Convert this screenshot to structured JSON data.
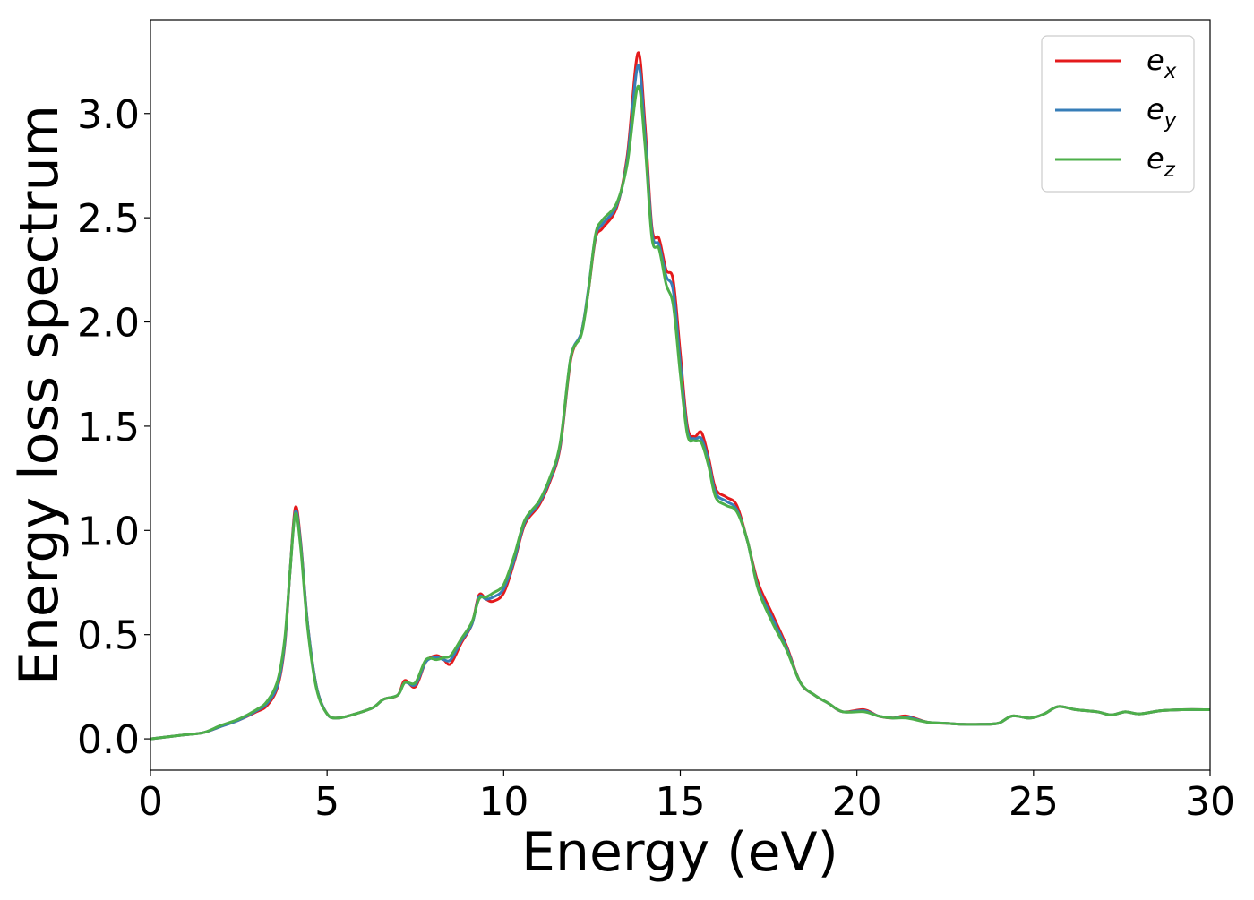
{
  "chart_data": {
    "type": "line",
    "title": "",
    "xlabel": "Energy (eV)",
    "ylabel": "Energy loss spectrum",
    "xlim": [
      0,
      30
    ],
    "ylim": [
      -0.15,
      3.45
    ],
    "xticks": [
      0,
      5,
      10,
      15,
      20,
      25,
      30
    ],
    "xtick_labels": [
      "0",
      "5",
      "10",
      "15",
      "20",
      "25",
      "30"
    ],
    "yticks": [
      0.0,
      0.5,
      1.0,
      1.5,
      2.0,
      2.5,
      3.0
    ],
    "ytick_labels": [
      "0.0",
      "0.5",
      "1.0",
      "1.5",
      "2.0",
      "2.5",
      "3.0"
    ],
    "grid": false,
    "legend_position": "top-right",
    "series": [
      {
        "name": "e_x",
        "label_main": "e",
        "label_sub": "x",
        "color": "#e41a1c",
        "points": [
          [
            0,
            0.0
          ],
          [
            0.5,
            0.01
          ],
          [
            1.0,
            0.02
          ],
          [
            1.5,
            0.03
          ],
          [
            2.0,
            0.06
          ],
          [
            2.5,
            0.09
          ],
          [
            3.0,
            0.13
          ],
          [
            3.3,
            0.16
          ],
          [
            3.6,
            0.25
          ],
          [
            3.8,
            0.45
          ],
          [
            3.95,
            0.8
          ],
          [
            4.1,
            1.11
          ],
          [
            4.25,
            0.95
          ],
          [
            4.45,
            0.55
          ],
          [
            4.7,
            0.25
          ],
          [
            5.0,
            0.12
          ],
          [
            5.3,
            0.1
          ],
          [
            5.8,
            0.12
          ],
          [
            6.3,
            0.15
          ],
          [
            6.6,
            0.19
          ],
          [
            7.0,
            0.21
          ],
          [
            7.2,
            0.28
          ],
          [
            7.5,
            0.25
          ],
          [
            7.8,
            0.37
          ],
          [
            8.1,
            0.4
          ],
          [
            8.3,
            0.38
          ],
          [
            8.5,
            0.36
          ],
          [
            8.8,
            0.46
          ],
          [
            9.1,
            0.55
          ],
          [
            9.3,
            0.69
          ],
          [
            9.5,
            0.67
          ],
          [
            9.7,
            0.66
          ],
          [
            10.0,
            0.7
          ],
          [
            10.3,
            0.85
          ],
          [
            10.6,
            1.03
          ],
          [
            11.0,
            1.12
          ],
          [
            11.3,
            1.23
          ],
          [
            11.6,
            1.4
          ],
          [
            11.9,
            1.82
          ],
          [
            12.2,
            1.95
          ],
          [
            12.4,
            2.15
          ],
          [
            12.6,
            2.4
          ],
          [
            12.8,
            2.45
          ],
          [
            13.2,
            2.55
          ],
          [
            13.5,
            2.8
          ],
          [
            13.8,
            3.29
          ],
          [
            14.0,
            2.95
          ],
          [
            14.2,
            2.45
          ],
          [
            14.4,
            2.4
          ],
          [
            14.6,
            2.25
          ],
          [
            14.8,
            2.2
          ],
          [
            15.0,
            1.85
          ],
          [
            15.2,
            1.5
          ],
          [
            15.4,
            1.45
          ],
          [
            15.6,
            1.47
          ],
          [
            15.8,
            1.35
          ],
          [
            16.0,
            1.2
          ],
          [
            16.3,
            1.16
          ],
          [
            16.6,
            1.12
          ],
          [
            16.9,
            0.95
          ],
          [
            17.2,
            0.75
          ],
          [
            17.6,
            0.6
          ],
          [
            18.0,
            0.45
          ],
          [
            18.4,
            0.27
          ],
          [
            18.8,
            0.21
          ],
          [
            19.2,
            0.17
          ],
          [
            19.6,
            0.13
          ],
          [
            20.2,
            0.14
          ],
          [
            20.6,
            0.11
          ],
          [
            21.0,
            0.1
          ],
          [
            21.4,
            0.11
          ],
          [
            22.0,
            0.08
          ],
          [
            22.5,
            0.075
          ],
          [
            23.0,
            0.07
          ],
          [
            23.5,
            0.07
          ],
          [
            24.0,
            0.075
          ],
          [
            24.4,
            0.11
          ],
          [
            24.9,
            0.1
          ],
          [
            25.3,
            0.12
          ],
          [
            25.7,
            0.155
          ],
          [
            26.2,
            0.14
          ],
          [
            26.8,
            0.13
          ],
          [
            27.2,
            0.115
          ],
          [
            27.6,
            0.13
          ],
          [
            28.0,
            0.12
          ],
          [
            28.6,
            0.135
          ],
          [
            29.2,
            0.14
          ],
          [
            30.0,
            0.14
          ]
        ]
      },
      {
        "name": "e_y",
        "label_main": "e",
        "label_sub": "y",
        "color": "#377eb8",
        "points": [
          [
            0,
            0.0
          ],
          [
            0.5,
            0.01
          ],
          [
            1.0,
            0.02
          ],
          [
            1.5,
            0.03
          ],
          [
            2.0,
            0.06
          ],
          [
            2.5,
            0.09
          ],
          [
            3.0,
            0.135
          ],
          [
            3.3,
            0.17
          ],
          [
            3.6,
            0.26
          ],
          [
            3.8,
            0.46
          ],
          [
            3.95,
            0.8
          ],
          [
            4.1,
            1.09
          ],
          [
            4.25,
            0.94
          ],
          [
            4.45,
            0.55
          ],
          [
            4.7,
            0.25
          ],
          [
            5.0,
            0.12
          ],
          [
            5.3,
            0.1
          ],
          [
            5.8,
            0.12
          ],
          [
            6.3,
            0.15
          ],
          [
            6.6,
            0.19
          ],
          [
            7.0,
            0.21
          ],
          [
            7.2,
            0.27
          ],
          [
            7.5,
            0.26
          ],
          [
            7.8,
            0.37
          ],
          [
            8.1,
            0.39
          ],
          [
            8.3,
            0.38
          ],
          [
            8.5,
            0.38
          ],
          [
            8.8,
            0.47
          ],
          [
            9.1,
            0.55
          ],
          [
            9.3,
            0.68
          ],
          [
            9.5,
            0.67
          ],
          [
            9.7,
            0.68
          ],
          [
            10.0,
            0.72
          ],
          [
            10.3,
            0.86
          ],
          [
            10.6,
            1.04
          ],
          [
            11.0,
            1.13
          ],
          [
            11.3,
            1.24
          ],
          [
            11.6,
            1.41
          ],
          [
            11.9,
            1.83
          ],
          [
            12.2,
            1.95
          ],
          [
            12.4,
            2.16
          ],
          [
            12.6,
            2.41
          ],
          [
            12.8,
            2.47
          ],
          [
            13.2,
            2.56
          ],
          [
            13.5,
            2.78
          ],
          [
            13.8,
            3.23
          ],
          [
            14.0,
            2.9
          ],
          [
            14.2,
            2.43
          ],
          [
            14.4,
            2.37
          ],
          [
            14.6,
            2.22
          ],
          [
            14.8,
            2.15
          ],
          [
            15.0,
            1.8
          ],
          [
            15.2,
            1.48
          ],
          [
            15.4,
            1.44
          ],
          [
            15.6,
            1.44
          ],
          [
            15.8,
            1.33
          ],
          [
            16.0,
            1.18
          ],
          [
            16.3,
            1.14
          ],
          [
            16.6,
            1.1
          ],
          [
            16.9,
            0.95
          ],
          [
            17.2,
            0.73
          ],
          [
            17.6,
            0.58
          ],
          [
            18.0,
            0.44
          ],
          [
            18.4,
            0.27
          ],
          [
            18.8,
            0.21
          ],
          [
            19.2,
            0.17
          ],
          [
            19.6,
            0.13
          ],
          [
            20.2,
            0.135
          ],
          [
            20.6,
            0.11
          ],
          [
            21.0,
            0.1
          ],
          [
            21.4,
            0.105
          ],
          [
            22.0,
            0.08
          ],
          [
            22.5,
            0.075
          ],
          [
            23.0,
            0.07
          ],
          [
            23.5,
            0.07
          ],
          [
            24.0,
            0.075
          ],
          [
            24.4,
            0.11
          ],
          [
            24.9,
            0.1
          ],
          [
            25.3,
            0.12
          ],
          [
            25.7,
            0.155
          ],
          [
            26.2,
            0.14
          ],
          [
            26.8,
            0.13
          ],
          [
            27.2,
            0.115
          ],
          [
            27.6,
            0.13
          ],
          [
            28.0,
            0.12
          ],
          [
            28.6,
            0.135
          ],
          [
            29.2,
            0.14
          ],
          [
            30.0,
            0.14
          ]
        ]
      },
      {
        "name": "e_z",
        "label_main": "e",
        "label_sub": "z",
        "color": "#4daf4a",
        "points": [
          [
            0,
            0.0
          ],
          [
            0.5,
            0.01
          ],
          [
            1.0,
            0.02
          ],
          [
            1.5,
            0.03
          ],
          [
            2.0,
            0.065
          ],
          [
            2.5,
            0.095
          ],
          [
            3.0,
            0.14
          ],
          [
            3.3,
            0.18
          ],
          [
            3.6,
            0.28
          ],
          [
            3.8,
            0.48
          ],
          [
            3.95,
            0.8
          ],
          [
            4.1,
            1.08
          ],
          [
            4.25,
            0.92
          ],
          [
            4.45,
            0.53
          ],
          [
            4.7,
            0.24
          ],
          [
            5.0,
            0.12
          ],
          [
            5.3,
            0.1
          ],
          [
            5.8,
            0.12
          ],
          [
            6.3,
            0.15
          ],
          [
            6.6,
            0.19
          ],
          [
            7.0,
            0.21
          ],
          [
            7.2,
            0.27
          ],
          [
            7.5,
            0.27
          ],
          [
            7.8,
            0.38
          ],
          [
            8.1,
            0.38
          ],
          [
            8.3,
            0.39
          ],
          [
            8.5,
            0.4
          ],
          [
            8.8,
            0.48
          ],
          [
            9.1,
            0.56
          ],
          [
            9.3,
            0.67
          ],
          [
            9.5,
            0.68
          ],
          [
            9.7,
            0.7
          ],
          [
            10.0,
            0.74
          ],
          [
            10.3,
            0.88
          ],
          [
            10.6,
            1.05
          ],
          [
            11.0,
            1.14
          ],
          [
            11.3,
            1.25
          ],
          [
            11.6,
            1.42
          ],
          [
            11.9,
            1.83
          ],
          [
            12.2,
            1.94
          ],
          [
            12.4,
            2.15
          ],
          [
            12.6,
            2.42
          ],
          [
            12.8,
            2.49
          ],
          [
            13.2,
            2.57
          ],
          [
            13.5,
            2.76
          ],
          [
            13.8,
            3.13
          ],
          [
            14.0,
            2.85
          ],
          [
            14.2,
            2.4
          ],
          [
            14.4,
            2.35
          ],
          [
            14.6,
            2.18
          ],
          [
            14.8,
            2.08
          ],
          [
            15.0,
            1.75
          ],
          [
            15.2,
            1.46
          ],
          [
            15.4,
            1.43
          ],
          [
            15.6,
            1.42
          ],
          [
            15.8,
            1.31
          ],
          [
            16.0,
            1.16
          ],
          [
            16.3,
            1.12
          ],
          [
            16.6,
            1.09
          ],
          [
            16.9,
            0.95
          ],
          [
            17.2,
            0.72
          ],
          [
            17.6,
            0.56
          ],
          [
            18.0,
            0.43
          ],
          [
            18.4,
            0.27
          ],
          [
            18.8,
            0.21
          ],
          [
            19.2,
            0.17
          ],
          [
            19.6,
            0.13
          ],
          [
            20.2,
            0.13
          ],
          [
            20.6,
            0.11
          ],
          [
            21.0,
            0.1
          ],
          [
            21.4,
            0.1
          ],
          [
            22.0,
            0.08
          ],
          [
            22.5,
            0.075
          ],
          [
            23.0,
            0.07
          ],
          [
            23.5,
            0.07
          ],
          [
            24.0,
            0.075
          ],
          [
            24.4,
            0.11
          ],
          [
            24.9,
            0.1
          ],
          [
            25.3,
            0.12
          ],
          [
            25.7,
            0.155
          ],
          [
            26.2,
            0.14
          ],
          [
            26.8,
            0.13
          ],
          [
            27.2,
            0.115
          ],
          [
            27.6,
            0.13
          ],
          [
            28.0,
            0.12
          ],
          [
            28.6,
            0.135
          ],
          [
            29.2,
            0.14
          ],
          [
            30.0,
            0.14
          ]
        ]
      }
    ]
  }
}
